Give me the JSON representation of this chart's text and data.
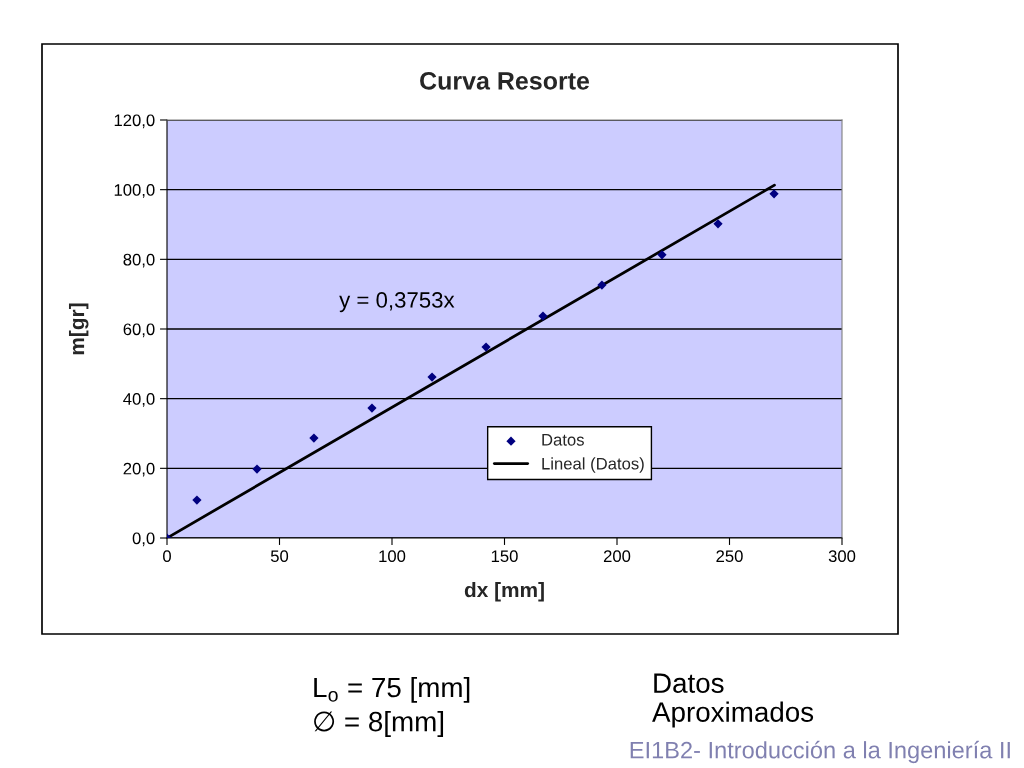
{
  "chart_data": {
    "type": "scatter",
    "title": "Curva Resorte",
    "xlabel": "dx [mm]",
    "ylabel": "m[gr]",
    "series": [
      {
        "name": "Datos",
        "color": "#000080",
        "marker": "diamond",
        "x": [
          0,
          13.3,
          40,
          65.3,
          91.1,
          117.8,
          141.8,
          167.1,
          193.3,
          220,
          244.9,
          269.8
        ],
        "values": [
          0,
          10.9,
          19.8,
          28.7,
          37.3,
          46.2,
          54.8,
          63.7,
          72.6,
          81.3,
          90.2,
          98.8
        ]
      },
      {
        "name": "Lineal (Datos)",
        "type": "line",
        "color": "#000000",
        "marker": "none",
        "line_style": "solid",
        "x": [
          0,
          270
        ],
        "values": [
          0,
          101.3
        ]
      }
    ],
    "xlim": [
      0,
      300
    ],
    "xticks": [
      0,
      50,
      100,
      150,
      200,
      250,
      300
    ],
    "ylim": [
      0,
      120
    ],
    "yticks": [
      {
        "value": 0,
        "label": "0,0"
      },
      {
        "value": 20,
        "label": "20,0"
      },
      {
        "value": 40,
        "label": "40,0"
      },
      {
        "value": 60,
        "label": "60,0"
      },
      {
        "value": 80,
        "label": "80,0"
      },
      {
        "value": 100,
        "label": "100,0"
      },
      {
        "value": 120,
        "label": "120,0"
      }
    ],
    "grid": "y",
    "legend": "bottom right",
    "annotations": [
      "y = 0,3753x",
      "L$_{o}$ = 75 [mm]",
      "∅ = 8[mm]",
      "Datos\nAproximados",
      "EI1B2- Introducción a la Ingeniería II"
    ]
  }
}
